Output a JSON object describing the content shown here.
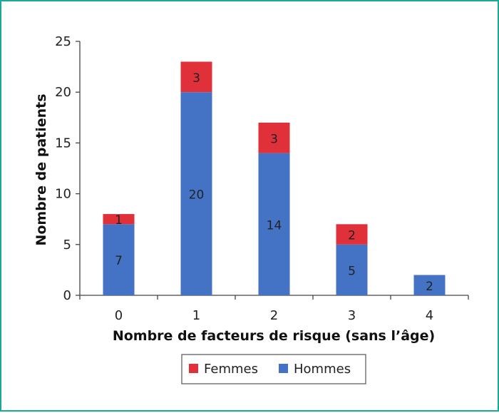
{
  "chart_data": {
    "type": "bar",
    "stacked": true,
    "categories": [
      "0",
      "1",
      "2",
      "3",
      "4"
    ],
    "series": [
      {
        "name": "Hommes",
        "values": [
          7,
          20,
          14,
          5,
          2
        ],
        "color": "#4472c4"
      },
      {
        "name": "Femmes",
        "values": [
          1,
          3,
          3,
          2,
          0
        ],
        "color": "#e0303a"
      }
    ],
    "xlabel": "Nombre de facteurs de risque (sans l’âge)",
    "ylabel": "Nombre de patients",
    "ylim": [
      0,
      25
    ],
    "yticks": [
      0,
      5,
      10,
      15,
      20,
      25
    ],
    "legend": {
      "placement": "bottom",
      "entries": [
        "Femmes",
        "Hommes"
      ]
    },
    "grid": false,
    "border_color": "#1aa89a"
  }
}
